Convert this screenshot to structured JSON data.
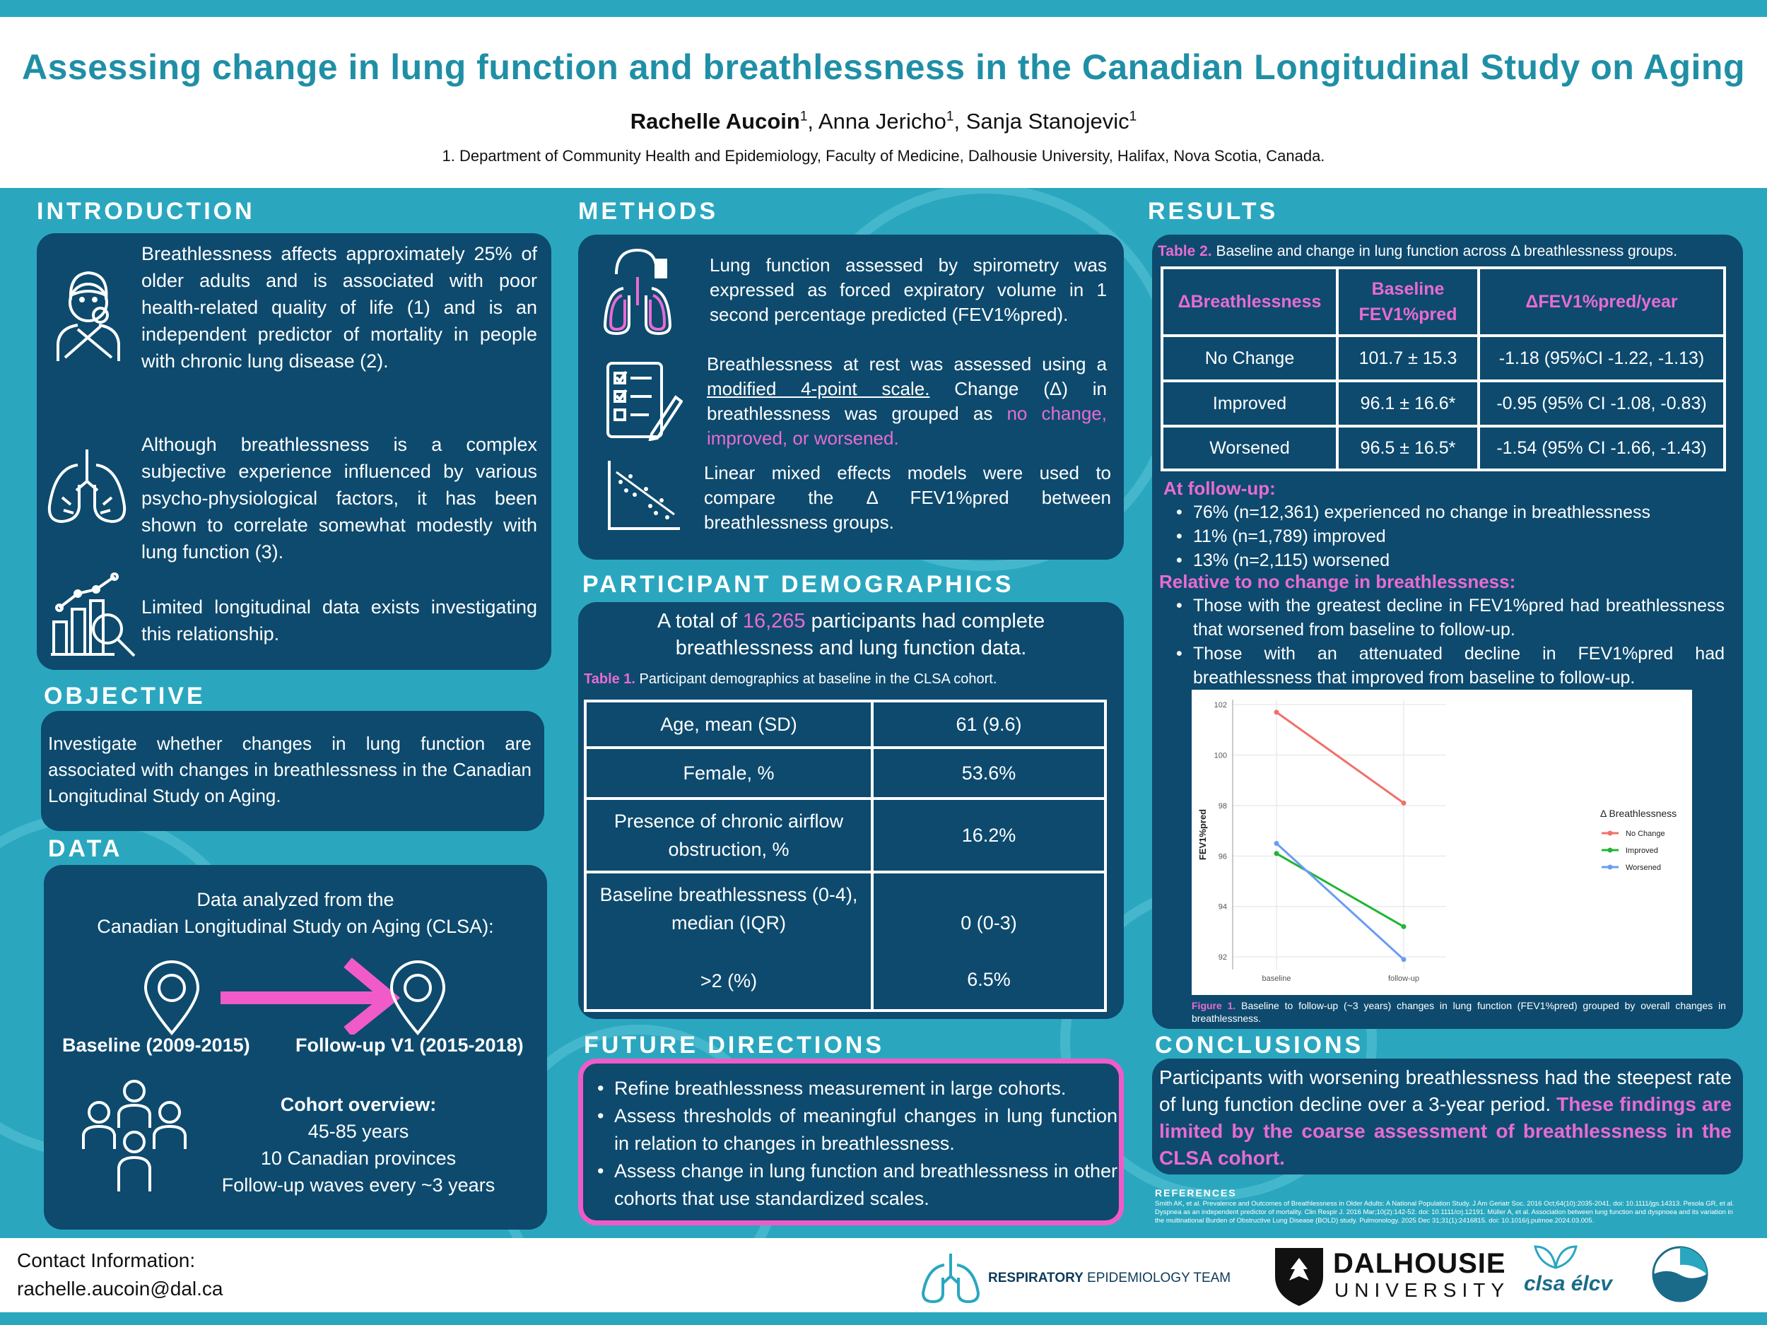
{
  "header": {
    "title": "Assessing change in lung function and breathlessness in the Canadian Longitudinal Study on Aging",
    "author1": "Rachelle Aucoin",
    "author2": "Anna Jericho",
    "author3": "Sanja Stanojevic",
    "sup": "1",
    "affiliation": "1. Department of Community Health and Epidemiology, Faculty of Medicine, Dalhousie University, Halifax, Nova Scotia, Canada."
  },
  "introduction": {
    "title": "INTRODUCTION",
    "p1": "Breathlessness affects approximately 25% of older adults and is associated with poor health-related quality of life (1) and is an independent predictor of mortality in people with chronic lung disease (2).",
    "p2": "Although breathlessness is a complex subjective experience influenced by various psycho-physiological factors, it has been shown to correlate somewhat modestly with lung function (3).",
    "p3": "Limited longitudinal data exists investigating this relationship."
  },
  "objective": {
    "title": "OBJECTIVE",
    "text": "Investigate whether changes in lung function are associated with changes in breathlessness in the Canadian Longitudinal Study on Aging."
  },
  "data": {
    "title": "DATA",
    "line1": "Data analyzed from the",
    "line2": "Canadian Longitudinal Study on Aging (CLSA):",
    "baseline": "Baseline (2009-2015)",
    "followup": "Follow-up V1 (2015-2018)",
    "cohort_title": "Cohort overview:",
    "cohort1": "45-85 years",
    "cohort2": "10 Canadian provinces",
    "cohort3": "Follow-up waves every ~3 years"
  },
  "methods": {
    "title": "METHODS",
    "m1": "Lung function assessed by spirometry was expressed as forced expiratory volume in 1 second percentage predicted (FEV1%pred).",
    "m2a": "Breathlessness at rest was assessed using a ",
    "m2u": "modified 4-point scale.",
    "m2b": " Change (Δ) in breathlessness was grouped as ",
    "m2p": "no change, improved, or worsened.",
    "m3": "Linear mixed effects models were used to compare the Δ FEV1%pred between breathlessness groups."
  },
  "demographics": {
    "title": "PARTICIPANT DEMOGRAPHICS",
    "total_a": "A total of ",
    "total_n": "16,265",
    "total_b": " participants had complete breathlessness and lung function data.",
    "table_label": "Table 1.",
    "table_caption": " Participant demographics at baseline in the CLSA cohort.",
    "rows": [
      {
        "label": "Age, mean (SD)",
        "value": "61 (9.6)"
      },
      {
        "label": "Female, %",
        "value": "53.6%"
      },
      {
        "label": "Presence of chronic airflow obstruction, %",
        "value": "16.2%"
      },
      {
        "label": "Baseline breathlessness (0-4), median (IQR)",
        "value": "0 (0-3)"
      },
      {
        "label": ">2 (%)",
        "value": "6.5%"
      }
    ]
  },
  "future": {
    "title": "FUTURE DIRECTIONS",
    "items": [
      "Refine breathlessness measurement in large cohorts.",
      "Assess thresholds of meaningful changes in lung function in relation to changes in breathlessness.",
      "Assess change in lung function and breathlessness in other cohorts that use standardized scales."
    ]
  },
  "results": {
    "title": "RESULTS",
    "table_label": "Table 2.",
    "table_caption": " Baseline and change in lung function across Δ breathlessness groups.",
    "headers": [
      "ΔBreathlessness",
      "Baseline FEV1%pred",
      "ΔFEV1%pred/year"
    ],
    "rows": [
      [
        "No Change",
        "101.7 ± 15.3",
        "-1.18 (95%CI -1.22, -1.13)"
      ],
      [
        "Improved",
        "96.1 ± 16.6*",
        "-0.95 (95% CI -1.08, -0.83)"
      ],
      [
        "Worsened",
        "96.5 ± 16.5*",
        "-1.54 (95% CI -1.66, -1.43)"
      ]
    ],
    "followup_title": "At follow-up:",
    "followup_items": [
      "76% (n=12,361) experienced no change in breathlessness",
      "11% (n=1,789) improved",
      "13% (n=2,115) worsened"
    ],
    "relative_title": "Relative to no change in breathlessness:",
    "relative_items": [
      "Those with the greatest decline in FEV1%pred had breathlessness that worsened from baseline to follow-up.",
      "Those with an attenuated decline in FEV1%pred had breathlessness that improved from baseline to follow-up."
    ],
    "figure_label": "Figure 1.",
    "figure_caption": " Baseline to follow-up (~3 years) changes in lung function (FEV1%pred) grouped by overall changes in breathlessness."
  },
  "chart_data": {
    "type": "line",
    "x": [
      "baseline",
      "follow-up"
    ],
    "ylabel": "FEV1%pred",
    "xlabel": "",
    "ylim": [
      91.5,
      102.2
    ],
    "yticks": [
      92,
      94,
      96,
      98,
      100,
      102
    ],
    "legend_title": "Δ Breathlessness",
    "legend_position": "right",
    "series": [
      {
        "name": "No Change",
        "values": [
          101.7,
          98.1
        ],
        "color": "#f0706a"
      },
      {
        "name": "Improved",
        "values": [
          96.1,
          93.2
        ],
        "color": "#1fb535"
      },
      {
        "name": "Worsened",
        "values": [
          96.5,
          91.9
        ],
        "color": "#6b9cf5"
      }
    ]
  },
  "conclusions": {
    "title": "CONCLUSIONS",
    "text_a": "Participants with worsening breathlessness had the steepest rate of lung function decline over a 3-year period. ",
    "text_b": "These findings are limited by the coarse assessment of breathlessness in the CLSA cohort."
  },
  "references": {
    "title": "REFERENCES",
    "text": "Smith AK, et al. Prevalence and Outcomes of Breathlessness in Older Adults: A National Population Study. J Am Geriatr Soc. 2016 Oct;64(10):2035-2041. doi: 10.1111/jgs.14313. Pesola GR, et al. Dyspnea as an independent predictor of mortality. Clin Respir J. 2016 Mar;10(2):142-52. doi: 10.1111/crj.12191. Müller A, et al. Association between lung function and dyspnoea and its variation in the multinational Burden of Obstructive Lung Disease (BOLD) study. Pulmonology. 2025 Dec 31;31(1):2416815. doi: 10.1016/j.pulmoe.2024.03.005."
  },
  "footer": {
    "contact_title": "Contact Information:",
    "contact_email": "rachelle.aucoin@dal.ca",
    "ret_a": "RESPIRATORY",
    "ret_b": " EPIDEMIOLOGY TEAM",
    "dal_a": "DALHOUSIE",
    "dal_b": "UNIVERSITY",
    "clsa": "clsa élcv"
  }
}
